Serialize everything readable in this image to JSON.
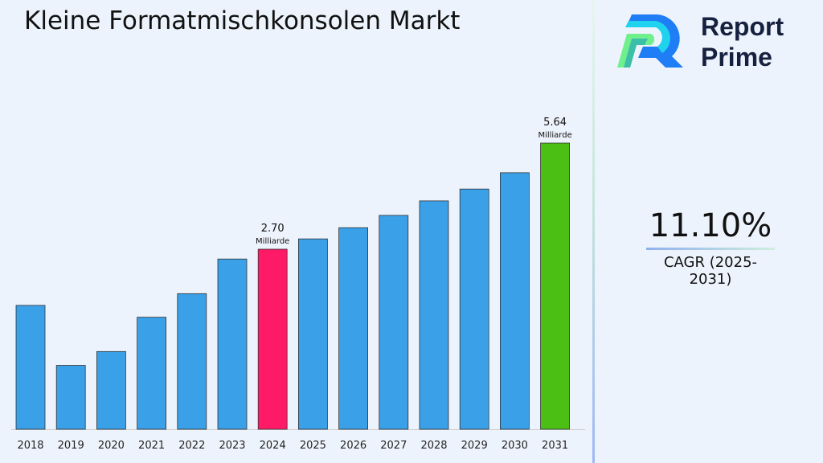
{
  "title": "Kleine Formatmischkonsolen Markt",
  "brand": {
    "name_line1": "Report",
    "name_line2": "Prime"
  },
  "cagr": {
    "value": "11.10%",
    "label": "CAGR (2025-2031)"
  },
  "chart_data": {
    "type": "bar",
    "title": "Kleine Formatmischkonsolen Markt",
    "categories": [
      "2018",
      "2019",
      "2020",
      "2021",
      "2022",
      "2023",
      "2024",
      "2025",
      "2026",
      "2027",
      "2028",
      "2029",
      "2030",
      "2031"
    ],
    "values": [
      1.49,
      0.52,
      0.71,
      1.27,
      1.72,
      2.47,
      2.7,
      2.95,
      3.23,
      3.55,
      3.94,
      4.27,
      4.74,
      5.64
    ],
    "unit": "Milliarde",
    "data_labels": {
      "2024": "2.70",
      "2031": "5.64"
    },
    "colors": {
      "default": "#3aa0e8",
      "2024": "#fe1a67",
      "2031": "#4cbf14"
    },
    "grid": false,
    "legend": "none"
  }
}
